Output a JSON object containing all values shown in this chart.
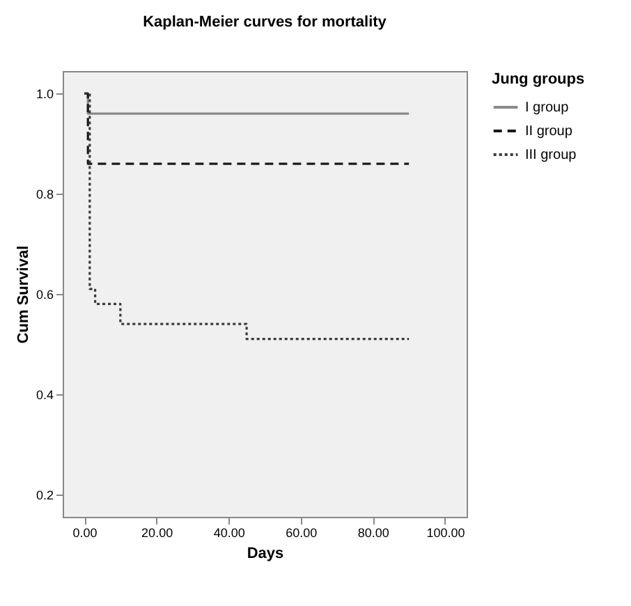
{
  "chart_data": {
    "type": "step",
    "title": "Kaplan-Meier curves for mortality",
    "xlabel": "Days",
    "ylabel": "Cum Survival",
    "legend_title": "Jung groups",
    "series": [
      {
        "name": "I group",
        "color": "#8a8a8a",
        "line_style": "solid",
        "x": [
          0,
          1,
          90
        ],
        "values": [
          1.0,
          0.96,
          0.96
        ]
      },
      {
        "name": "II group",
        "color": "#1a1a1a",
        "line_style": "dashed",
        "x": [
          0,
          1,
          90
        ],
        "values": [
          1.0,
          0.86,
          0.86
        ]
      },
      {
        "name": "III group",
        "color": "#3a3a3a",
        "line_style": "dotted",
        "x": [
          0,
          1.5,
          3,
          10,
          45,
          90
        ],
        "values": [
          1.0,
          0.61,
          0.58,
          0.54,
          0.51,
          0.51
        ]
      }
    ],
    "xlim": [
      -6,
      106
    ],
    "ylim": [
      0.155,
      1.045
    ],
    "xticks": [
      {
        "value": 0,
        "label": "0.00"
      },
      {
        "value": 20,
        "label": "20.00"
      },
      {
        "value": 40,
        "label": "40.00"
      },
      {
        "value": 60,
        "label": "60.00"
      },
      {
        "value": 80,
        "label": "80.00"
      },
      {
        "value": 100,
        "label": "100.00"
      }
    ],
    "yticks": [
      {
        "value": 0.2,
        "label": "0.2"
      },
      {
        "value": 0.4,
        "label": "0.4"
      },
      {
        "value": 0.6,
        "label": "0.6"
      },
      {
        "value": 0.8,
        "label": "0.8"
      },
      {
        "value": 1.0,
        "label": "1.0"
      }
    ],
    "grid": false,
    "legend": "right",
    "marker": "none"
  }
}
